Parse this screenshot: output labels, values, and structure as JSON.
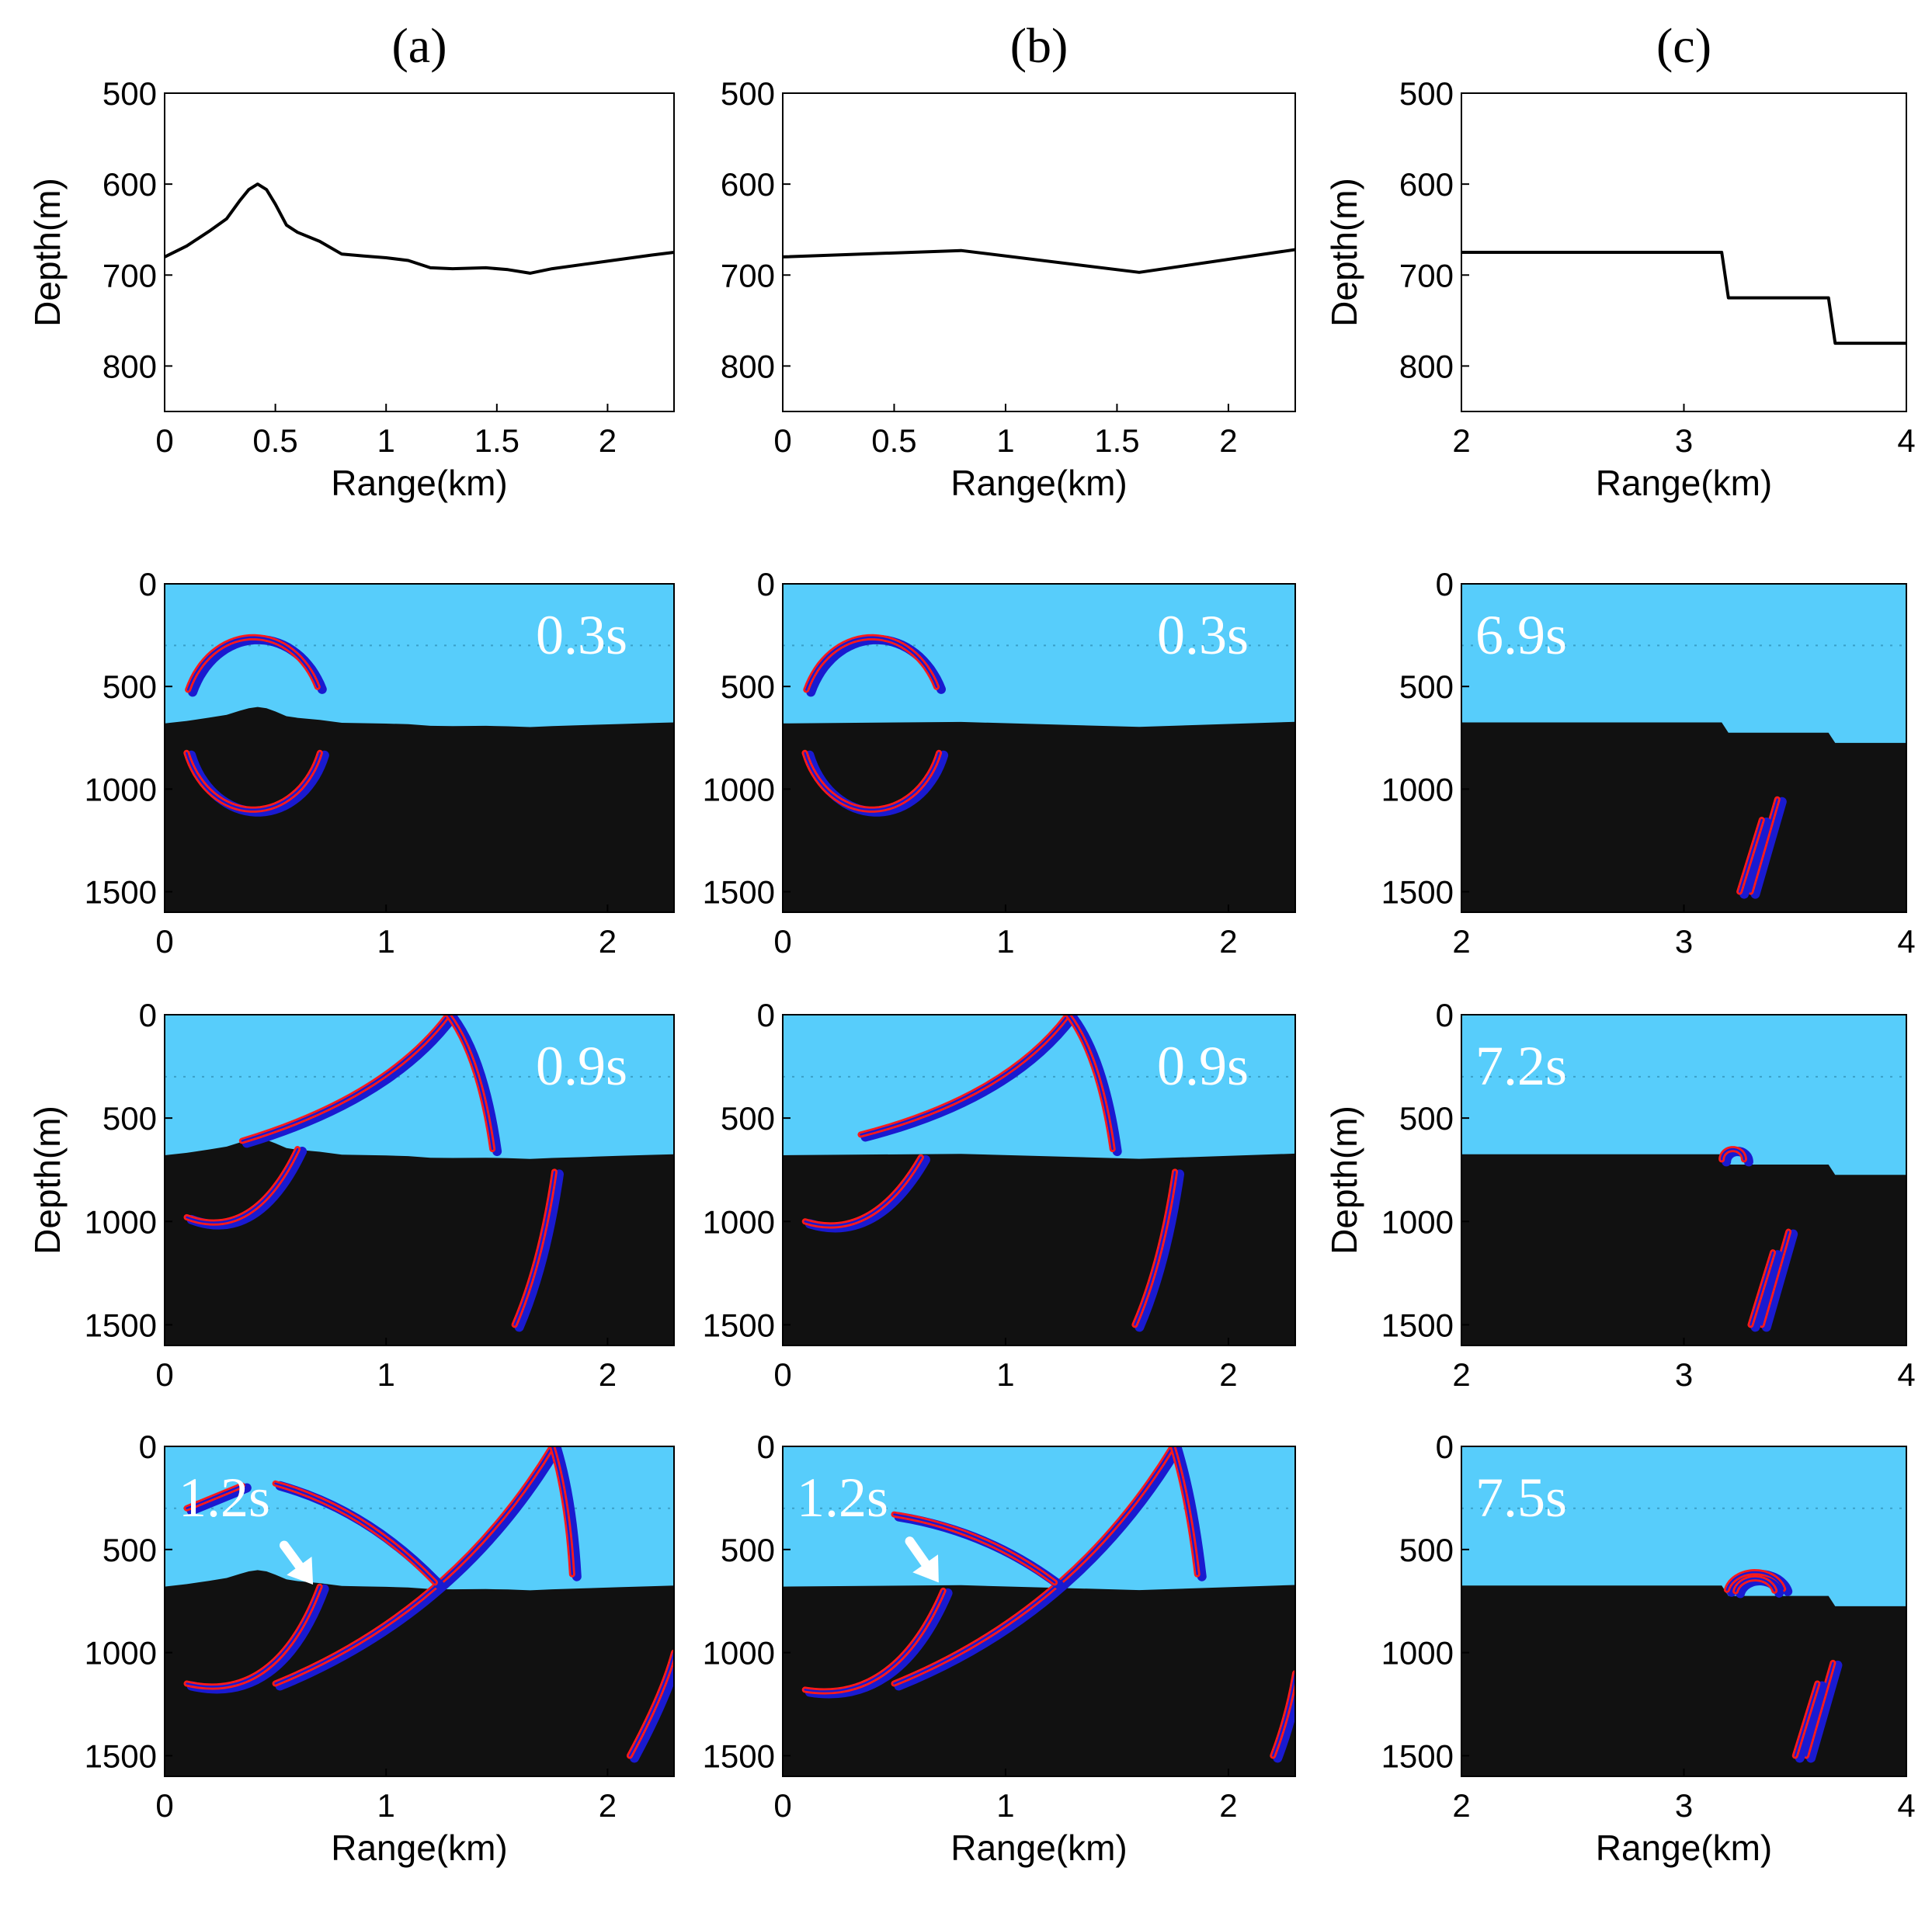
{
  "chart_data": [
    {
      "id": "a_bathy",
      "type": "line",
      "panel_label": "(a)",
      "xlabel": "Range(km)",
      "ylabel": "Depth(m)",
      "xlim": [
        0,
        2.3
      ],
      "ylim": [
        500,
        850
      ],
      "y_reversed": true,
      "xticks": [
        0,
        0.5,
        1,
        1.5,
        2
      ],
      "xtick_labels": [
        "0",
        "0.5",
        "1",
        "1.5",
        "2"
      ],
      "yticks": [
        500,
        600,
        700,
        800
      ],
      "ytick_labels": [
        "500",
        "600",
        "700",
        "800"
      ],
      "series": [
        {
          "name": "bathymetry",
          "x": [
            0,
            0.1,
            0.2,
            0.28,
            0.34,
            0.38,
            0.42,
            0.46,
            0.5,
            0.55,
            0.6,
            0.7,
            0.8,
            0.9,
            1.0,
            1.1,
            1.2,
            1.3,
            1.45,
            1.55,
            1.65,
            1.75,
            1.9,
            2.05,
            2.2,
            2.3
          ],
          "y": [
            680,
            668,
            652,
            638,
            618,
            606,
            600,
            606,
            622,
            645,
            653,
            663,
            677,
            679,
            681,
            684,
            692,
            693,
            692,
            694,
            698,
            693,
            688,
            683,
            678,
            675
          ]
        }
      ]
    },
    {
      "id": "b_bathy",
      "type": "line",
      "panel_label": "(b)",
      "xlabel": "Range(km)",
      "ylabel": "",
      "xlim": [
        0,
        2.3
      ],
      "ylim": [
        500,
        850
      ],
      "y_reversed": true,
      "xticks": [
        0,
        0.5,
        1,
        1.5,
        2
      ],
      "xtick_labels": [
        "0",
        "0.5",
        "1",
        "1.5",
        "2"
      ],
      "yticks": [
        500,
        600,
        700,
        800
      ],
      "ytick_labels": [
        "500",
        "600",
        "700",
        "800"
      ],
      "series": [
        {
          "name": "bathymetry",
          "x": [
            0,
            0.8,
            1.6,
            2.3
          ],
          "y": [
            680,
            673,
            697,
            672
          ]
        }
      ]
    },
    {
      "id": "c_bathy",
      "type": "line",
      "panel_label": "(c)",
      "xlabel": "Range(km)",
      "ylabel": "Depth(m)",
      "xlim": [
        2,
        4
      ],
      "ylim": [
        500,
        850
      ],
      "y_reversed": true,
      "xticks": [
        2,
        3,
        4
      ],
      "xtick_labels": [
        "2",
        "3",
        "4"
      ],
      "yticks": [
        500,
        600,
        700,
        800
      ],
      "ytick_labels": [
        "500",
        "600",
        "700",
        "800"
      ],
      "series": [
        {
          "name": "bathymetry",
          "x": [
            2,
            3.17,
            3.2,
            3.65,
            3.68,
            4
          ],
          "y": [
            675,
            675,
            725,
            725,
            775,
            775
          ]
        }
      ]
    },
    {
      "id": "a_t1",
      "type": "snapshot",
      "time_label": "0.3s",
      "xlabel": "",
      "ylabel": "",
      "xlim": [
        0,
        2.3
      ],
      "ylim": [
        0,
        1600
      ],
      "y_reversed": true,
      "xticks": [
        0,
        1,
        2
      ],
      "xtick_labels": [
        "0",
        "1",
        "2"
      ],
      "yticks": [
        0,
        500,
        1000,
        1500
      ],
      "ytick_labels": [
        "0",
        "500",
        "1000",
        "1500"
      ],
      "seabed": {
        "x": [
          0,
          0.1,
          0.2,
          0.28,
          0.34,
          0.38,
          0.42,
          0.46,
          0.5,
          0.55,
          0.6,
          0.7,
          0.8,
          0.9,
          1.0,
          1.1,
          1.2,
          1.3,
          1.45,
          1.55,
          1.65,
          1.75,
          1.9,
          2.05,
          2.2,
          2.3
        ],
        "y": [
          680,
          668,
          652,
          638,
          618,
          606,
          600,
          606,
          622,
          645,
          653,
          663,
          677,
          679,
          681,
          684,
          692,
          693,
          692,
          694,
          698,
          693,
          688,
          683,
          678,
          675
        ]
      },
      "wavefronts": [
        {
          "kind": "arc",
          "cx": 0.4,
          "cy": 680,
          "rx": 0.32,
          "ry": 420,
          "a0": 200,
          "a1": 340
        },
        {
          "kind": "arc",
          "cx": 0.4,
          "cy": 680,
          "rx": 0.32,
          "ry": 420,
          "a0": 25,
          "a1": 160
        }
      ]
    },
    {
      "id": "b_t1",
      "type": "snapshot",
      "time_label": "0.3s",
      "xlabel": "",
      "ylabel": "",
      "xlim": [
        0,
        2.3
      ],
      "ylim": [
        0,
        1600
      ],
      "y_reversed": true,
      "xticks": [
        0,
        1,
        2
      ],
      "xtick_labels": [
        "0",
        "1",
        "2"
      ],
      "yticks": [
        0,
        500,
        1000,
        1500
      ],
      "ytick_labels": [
        "0",
        "500",
        "1000",
        "1500"
      ],
      "seabed": {
        "x": [
          0,
          0.8,
          1.6,
          2.3
        ],
        "y": [
          680,
          673,
          697,
          672
        ]
      },
      "wavefronts": [
        {
          "kind": "arc",
          "cx": 0.4,
          "cy": 680,
          "rx": 0.32,
          "ry": 420,
          "a0": 200,
          "a1": 340
        },
        {
          "kind": "arc",
          "cx": 0.4,
          "cy": 680,
          "rx": 0.32,
          "ry": 420,
          "a0": 25,
          "a1": 160
        }
      ]
    },
    {
      "id": "c_t1",
      "type": "snapshot",
      "time_label": "6.9s",
      "xlabel": "",
      "ylabel": "",
      "xlim": [
        2,
        4
      ],
      "ylim": [
        0,
        1600
      ],
      "y_reversed": true,
      "xticks": [
        2,
        3,
        4
      ],
      "xtick_labels": [
        "2",
        "3",
        "4"
      ],
      "yticks": [
        0,
        500,
        1000,
        1500
      ],
      "ytick_labels": [
        "0",
        "500",
        "1000",
        "1500"
      ],
      "seabed": {
        "x": [
          2,
          3.17,
          3.2,
          3.65,
          3.68,
          4
        ],
        "y": [
          675,
          675,
          725,
          725,
          775,
          775
        ]
      },
      "wavefronts": [
        {
          "kind": "line",
          "x0": 3.3,
          "y0": 1500,
          "x1": 3.42,
          "y1": 1050
        },
        {
          "kind": "line",
          "x0": 3.25,
          "y0": 1500,
          "x1": 3.35,
          "y1": 1150
        }
      ]
    },
    {
      "id": "a_t2",
      "type": "snapshot",
      "time_label": "0.9s",
      "xlabel": "",
      "ylabel": "Depth(m)",
      "xlim": [
        0,
        2.3
      ],
      "ylim": [
        0,
        1600
      ],
      "y_reversed": true,
      "xticks": [
        0,
        1,
        2
      ],
      "xtick_labels": [
        "0",
        "1",
        "2"
      ],
      "yticks": [
        0,
        500,
        1000,
        1500
      ],
      "ytick_labels": [
        "0",
        "500",
        "1000",
        "1500"
      ],
      "seabed": {
        "x": [
          0,
          0.1,
          0.2,
          0.28,
          0.34,
          0.38,
          0.42,
          0.46,
          0.5,
          0.55,
          0.6,
          0.7,
          0.8,
          0.9,
          1.0,
          1.1,
          1.2,
          1.3,
          1.45,
          1.55,
          1.65,
          1.75,
          1.9,
          2.05,
          2.2,
          2.3
        ],
        "y": [
          680,
          668,
          652,
          638,
          618,
          606,
          600,
          606,
          622,
          645,
          653,
          663,
          677,
          679,
          681,
          684,
          692,
          693,
          692,
          694,
          698,
          693,
          688,
          683,
          678,
          675
        ]
      },
      "wavefronts": [
        {
          "kind": "quad",
          "x0": 0.35,
          "y0": 610,
          "cx": 1.0,
          "cy": 400,
          "x1": 1.28,
          "y1": 0
        },
        {
          "kind": "quad",
          "x0": 1.28,
          "y0": 0,
          "cx": 1.42,
          "cy": 200,
          "x1": 1.48,
          "y1": 650
        },
        {
          "kind": "quad",
          "x0": 1.58,
          "y0": 1500,
          "cx": 1.7,
          "cy": 1200,
          "x1": 1.76,
          "y1": 760
        },
        {
          "kind": "quad",
          "x0": 0.1,
          "y0": 980,
          "cx": 0.4,
          "cy": 1100,
          "x1": 0.6,
          "y1": 650
        }
      ]
    },
    {
      "id": "b_t2",
      "type": "snapshot",
      "time_label": "0.9s",
      "xlabel": "",
      "ylabel": "",
      "xlim": [
        0,
        2.3
      ],
      "ylim": [
        0,
        1600
      ],
      "y_reversed": true,
      "xticks": [
        0,
        1,
        2
      ],
      "xtick_labels": [
        "0",
        "1",
        "2"
      ],
      "yticks": [
        0,
        500,
        1000,
        1500
      ],
      "ytick_labels": [
        "0",
        "500",
        "1000",
        "1500"
      ],
      "seabed": {
        "x": [
          0,
          0.8,
          1.6,
          2.3
        ],
        "y": [
          680,
          673,
          697,
          672
        ]
      },
      "wavefronts": [
        {
          "kind": "quad",
          "x0": 0.35,
          "y0": 580,
          "cx": 1.0,
          "cy": 400,
          "x1": 1.28,
          "y1": 0
        },
        {
          "kind": "quad",
          "x0": 1.28,
          "y0": 0,
          "cx": 1.42,
          "cy": 200,
          "x1": 1.48,
          "y1": 650
        },
        {
          "kind": "quad",
          "x0": 1.58,
          "y0": 1500,
          "cx": 1.7,
          "cy": 1200,
          "x1": 1.76,
          "y1": 760
        },
        {
          "kind": "quad",
          "x0": 0.1,
          "y0": 1000,
          "cx": 0.4,
          "cy": 1100,
          "x1": 0.62,
          "y1": 690
        }
      ]
    },
    {
      "id": "c_t2",
      "type": "snapshot",
      "time_label": "7.2s",
      "xlabel": "",
      "ylabel": "Depth(m)",
      "xlim": [
        2,
        4
      ],
      "ylim": [
        0,
        1600
      ],
      "y_reversed": true,
      "xticks": [
        2,
        3,
        4
      ],
      "xtick_labels": [
        "2",
        "3",
        "4"
      ],
      "yticks": [
        0,
        500,
        1000,
        1500
      ],
      "ytick_labels": [
        "0",
        "500",
        "1000",
        "1500"
      ],
      "seabed": {
        "x": [
          2,
          3.17,
          3.2,
          3.65,
          3.68,
          4
        ],
        "y": [
          675,
          675,
          725,
          725,
          775,
          775
        ]
      },
      "wavefronts": [
        {
          "kind": "line",
          "x0": 3.35,
          "y0": 1500,
          "x1": 3.47,
          "y1": 1050
        },
        {
          "kind": "line",
          "x0": 3.3,
          "y0": 1500,
          "x1": 3.4,
          "y1": 1150
        },
        {
          "kind": "arc",
          "cx": 3.22,
          "cy": 700,
          "rx": 0.05,
          "ry": 50,
          "a0": 0,
          "a1": 180
        }
      ]
    },
    {
      "id": "a_t3",
      "type": "snapshot",
      "time_label": "1.2s",
      "xlabel": "Range(km)",
      "ylabel": "",
      "xlim": [
        0,
        2.3
      ],
      "ylim": [
        0,
        1600
      ],
      "y_reversed": true,
      "xticks": [
        0,
        1,
        2
      ],
      "xtick_labels": [
        "0",
        "1",
        "2"
      ],
      "yticks": [
        0,
        500,
        1000,
        1500
      ],
      "ytick_labels": [
        "0",
        "500",
        "1000",
        "1500"
      ],
      "seabed": {
        "x": [
          0,
          0.1,
          0.2,
          0.28,
          0.34,
          0.38,
          0.42,
          0.46,
          0.5,
          0.55,
          0.6,
          0.7,
          0.8,
          0.9,
          1.0,
          1.1,
          1.2,
          1.3,
          1.45,
          1.55,
          1.65,
          1.75,
          1.9,
          2.05,
          2.2,
          2.3
        ],
        "y": [
          680,
          668,
          652,
          638,
          618,
          606,
          600,
          606,
          622,
          645,
          653,
          663,
          677,
          679,
          681,
          684,
          692,
          693,
          692,
          694,
          698,
          693,
          688,
          683,
          678,
          675
        ]
      },
      "wavefronts": [
        {
          "kind": "quad",
          "x0": 0.5,
          "y0": 1150,
          "cx": 1.3,
          "cy": 800,
          "x1": 1.75,
          "y1": 0
        },
        {
          "kind": "quad",
          "x0": 1.75,
          "y0": 0,
          "cx": 1.82,
          "cy": 250,
          "x1": 1.84,
          "y1": 620
        },
        {
          "kind": "quad",
          "x0": 0.5,
          "y0": 180,
          "cx": 0.9,
          "cy": 300,
          "x1": 1.22,
          "y1": 660
        },
        {
          "kind": "quad",
          "x0": 0.1,
          "y0": 1150,
          "cx": 0.5,
          "cy": 1250,
          "x1": 0.7,
          "y1": 680
        },
        {
          "kind": "quad",
          "x0": 2.1,
          "y0": 1500,
          "cx": 2.25,
          "cy": 1200,
          "x1": 2.3,
          "y1": 1000
        },
        {
          "kind": "line",
          "x0": 0.1,
          "y0": 300,
          "x1": 0.35,
          "y1": 190
        }
      ],
      "annotation": {
        "kind": "arrow",
        "x0": 0.54,
        "y0": 480,
        "x1": 0.67,
        "y1": 670
      }
    },
    {
      "id": "b_t3",
      "type": "snapshot",
      "time_label": "1.2s",
      "xlabel": "Range(km)",
      "ylabel": "",
      "xlim": [
        0,
        2.3
      ],
      "ylim": [
        0,
        1600
      ],
      "y_reversed": true,
      "xticks": [
        0,
        1,
        2
      ],
      "xtick_labels": [
        "0",
        "1",
        "2"
      ],
      "yticks": [
        0,
        500,
        1000,
        1500
      ],
      "ytick_labels": [
        "0",
        "500",
        "1000",
        "1500"
      ],
      "seabed": {
        "x": [
          0,
          0.8,
          1.6,
          2.3
        ],
        "y": [
          680,
          673,
          697,
          672
        ]
      },
      "wavefronts": [
        {
          "kind": "quad",
          "x0": 0.5,
          "y0": 1150,
          "cx": 1.3,
          "cy": 800,
          "x1": 1.75,
          "y1": 0
        },
        {
          "kind": "quad",
          "x0": 1.75,
          "y0": 0,
          "cx": 1.82,
          "cy": 250,
          "x1": 1.86,
          "y1": 620
        },
        {
          "kind": "quad",
          "x0": 0.5,
          "y0": 330,
          "cx": 0.9,
          "cy": 400,
          "x1": 1.22,
          "y1": 660
        },
        {
          "kind": "quad",
          "x0": 0.1,
          "y0": 1180,
          "cx": 0.5,
          "cy": 1250,
          "x1": 0.72,
          "y1": 700
        },
        {
          "kind": "quad",
          "x0": 2.2,
          "y0": 1500,
          "cx": 2.27,
          "cy": 1300,
          "x1": 2.3,
          "y1": 1100
        }
      ],
      "annotation": {
        "kind": "arrow",
        "x0": 0.57,
        "y0": 460,
        "x1": 0.7,
        "y1": 660
      }
    },
    {
      "id": "c_t3",
      "type": "snapshot",
      "time_label": "7.5s",
      "xlabel": "Range(km)",
      "ylabel": "",
      "xlim": [
        2,
        4
      ],
      "ylim": [
        0,
        1600
      ],
      "y_reversed": true,
      "xticks": [
        2,
        3,
        4
      ],
      "xtick_labels": [
        "2",
        "3",
        "4"
      ],
      "yticks": [
        0,
        500,
        1000,
        1500
      ],
      "ytick_labels": [
        "0",
        "500",
        "1000",
        "1500"
      ],
      "seabed": {
        "x": [
          2,
          3.17,
          3.2,
          3.65,
          3.68,
          4
        ],
        "y": [
          675,
          675,
          725,
          725,
          775,
          775
        ]
      },
      "wavefronts": [
        {
          "kind": "line",
          "x0": 3.55,
          "y0": 1500,
          "x1": 3.67,
          "y1": 1050
        },
        {
          "kind": "line",
          "x0": 3.5,
          "y0": 1500,
          "x1": 3.6,
          "y1": 1150
        },
        {
          "kind": "arc",
          "cx": 3.32,
          "cy": 720,
          "rx": 0.13,
          "ry": 110,
          "a0": 15,
          "a1": 170
        },
        {
          "kind": "arc",
          "cx": 3.32,
          "cy": 720,
          "rx": 0.09,
          "ry": 80,
          "a0": 15,
          "a1": 170
        }
      ]
    }
  ],
  "colors": {
    "water": "#57cdfb",
    "seabed": "#111111",
    "line": "#000000",
    "wave_red": "#ff1a1a",
    "wave_blue": "#1a1ad0",
    "time_label": "#ffffff"
  }
}
